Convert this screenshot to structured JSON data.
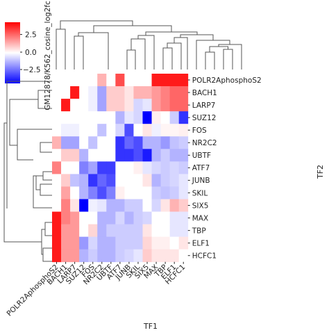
{
  "figure": {
    "colorbar_label": "GM12878/K562_cosine_log2fc",
    "colorbar_ticks": [
      "2.5",
      "0.0",
      "−2.5"
    ],
    "xlabel": "TF1",
    "ylabel": "TF2"
  },
  "chart_data": {
    "type": "heatmap",
    "colormap": "bwr",
    "color_range": [
      -5,
      5
    ],
    "colorbar_tick_values": [
      2.5,
      0,
      -2.5
    ],
    "x_categories": [
      "POLR2AphosphoS2",
      "BACH1",
      "LARP7",
      "SUZ12",
      "FOS",
      "NR2C2",
      "UBTF",
      "ATF7",
      "JUNB",
      "SKIL",
      "SIX5",
      "MAX",
      "TBP",
      "ELF1",
      "HCFC1"
    ],
    "y_categories": [
      "POLR2AphosphoS2",
      "BACH1",
      "LARP7",
      "SUZ12",
      "FOS",
      "NR2C2",
      "UBTF",
      "ATF7",
      "JUNB",
      "SKIL",
      "SIX5",
      "MAX",
      "TBP",
      "ELF1",
      "HCFC1"
    ],
    "values": [
      [
        0,
        0,
        0,
        0,
        0,
        1.5,
        0,
        3.5,
        0,
        0,
        0,
        4.5,
        4.5,
        4.5,
        4.5
      ],
      [
        0,
        0,
        4.5,
        0,
        -0.3,
        -1.8,
        1.0,
        1.0,
        0.5,
        1.5,
        1.5,
        2.0,
        2.5,
        3.0,
        3.0
      ],
      [
        0,
        4.5,
        0,
        0,
        -0.3,
        -1.8,
        1.0,
        1.0,
        0.5,
        -0.8,
        -0.5,
        2.0,
        2.5,
        3.0,
        3.0
      ],
      [
        0,
        0,
        0,
        0,
        0,
        0,
        0,
        -1.5,
        -0.5,
        -0.8,
        -5.0,
        0.3,
        0,
        -1.0,
        -4.0
      ],
      [
        0,
        -0.3,
        -0.3,
        0,
        0,
        -1.2,
        0,
        -0.8,
        -3.5,
        0,
        0.5,
        -0.3,
        0.2,
        0.2,
        0.3
      ],
      [
        1.5,
        -1.8,
        -1.8,
        0,
        -1.2,
        0,
        0,
        -4.0,
        -3.0,
        -3.5,
        -1.5,
        -1.5,
        -2.0,
        -1.2,
        -1.0
      ],
      [
        0,
        1.0,
        1.0,
        -1.5,
        0,
        0,
        0,
        -4.0,
        -4.0,
        -3.5,
        -4.5,
        -1.5,
        -1.0,
        -1.5,
        -1.5
      ],
      [
        2.5,
        0,
        0,
        -2.5,
        -1.8,
        -3.8,
        -3.8,
        0,
        0,
        0.3,
        -0.5,
        -0.8,
        -1.0,
        -0.8,
        -1.0
      ],
      [
        0,
        1.0,
        -1.2,
        -1.5,
        -4.0,
        -3.0,
        -3.5,
        0,
        0,
        0,
        0.5,
        -1.5,
        -1.0,
        -0.8,
        -0.5
      ],
      [
        0,
        1.8,
        0,
        -1.5,
        -2.5,
        -3.5,
        -2.5,
        0.3,
        0,
        0,
        0,
        -1.0,
        -1.2,
        -1.0,
        -0.5
      ],
      [
        0,
        2.5,
        0.5,
        -5.0,
        -0.3,
        -0.5,
        -1.5,
        -1.5,
        -1.0,
        -1.0,
        0,
        -0.8,
        0.5,
        1.5,
        1.0
      ],
      [
        4.5,
        2.5,
        2.0,
        0,
        0,
        -1.5,
        -1.5,
        -0.8,
        -1.5,
        -1.0,
        -0.8,
        0,
        0,
        -0.5,
        -0.5
      ],
      [
        4.5,
        2.0,
        2.0,
        0,
        0.8,
        -1.5,
        -1.0,
        -1.0,
        -1.0,
        -1.0,
        0.5,
        0,
        0,
        -0.5,
        -0.5
      ],
      [
        4.5,
        2.0,
        2.0,
        -2.0,
        -0.8,
        -1.5,
        -1.5,
        -1.0,
        -1.0,
        -1.0,
        0.8,
        0.3,
        0.3,
        0,
        0.5
      ],
      [
        4.5,
        2.0,
        2.0,
        -1.5,
        -1.0,
        -1.5,
        -1.5,
        -1.0,
        -0.8,
        -0.5,
        1.0,
        0.5,
        0.5,
        0.5,
        0
      ]
    ],
    "grid": false,
    "row_dendrogram": true,
    "col_dendrogram": true
  }
}
